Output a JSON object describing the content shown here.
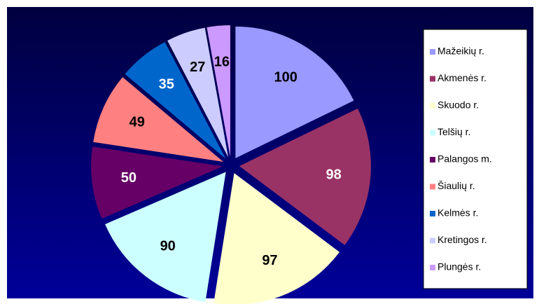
{
  "chart_data": {
    "type": "pie",
    "categories": [
      "Mažeikių r.",
      "Akmenės r.",
      "Skuodo r.",
      "Telšių r.",
      "Palangos m.",
      "Šiaulių r.",
      "Kelmės r.",
      "Kretingos r.",
      "Plungės r."
    ],
    "values": [
      100,
      98,
      97,
      90,
      50,
      49,
      35,
      27,
      16
    ],
    "colors": [
      "#9999ff",
      "#993366",
      "#ffffcc",
      "#ccffff",
      "#660066",
      "#ff8080",
      "#0066cc",
      "#ccccff",
      "#cc99ff"
    ],
    "legend": "right"
  }
}
